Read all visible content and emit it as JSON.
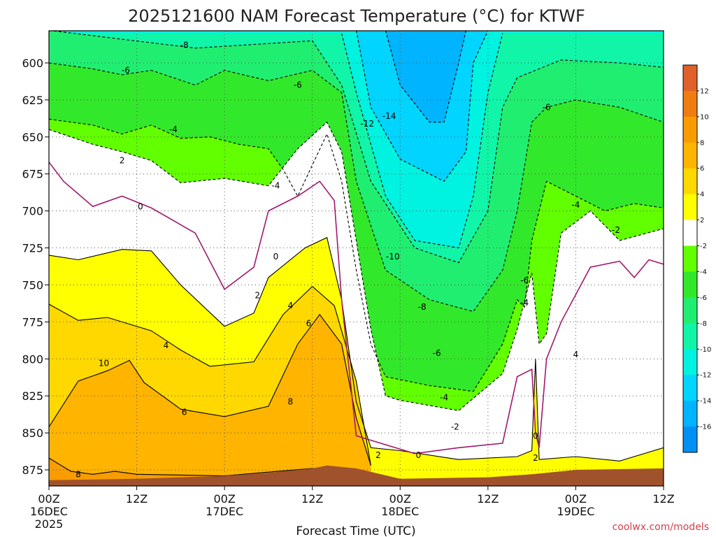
{
  "chart_data": {
    "type": "heatmap",
    "title": "2025121600 NAM Forecast Temperature (°C) for KTWF",
    "xlabel": "Forecast Time (UTC)",
    "ylabel": "",
    "credit": "coolwx.com/models",
    "x_ticks": [
      {
        "hour": 0,
        "line1": "00Z",
        "line2": "16DEC",
        "line3": "2025"
      },
      {
        "hour": 12,
        "line1": "12Z",
        "line2": "",
        "line3": ""
      },
      {
        "hour": 24,
        "line1": "00Z",
        "line2": "17DEC",
        "line3": ""
      },
      {
        "hour": 36,
        "line1": "12Z",
        "line2": "",
        "line3": ""
      },
      {
        "hour": 48,
        "line1": "00Z",
        "line2": "18DEC",
        "line3": ""
      },
      {
        "hour": 60,
        "line1": "12Z",
        "line2": "",
        "line3": ""
      },
      {
        "hour": 72,
        "line1": "00Z",
        "line2": "19DEC",
        "line3": ""
      },
      {
        "hour": 84,
        "line1": "12Z",
        "line2": "",
        "line3": ""
      }
    ],
    "y_ticks": [
      600,
      625,
      650,
      675,
      700,
      725,
      750,
      775,
      800,
      825,
      850,
      875
    ],
    "xlim_hours": [
      0,
      84
    ],
    "ylim_hpa": [
      578,
      885
    ],
    "colorbar": {
      "ticks": [
        12,
        10,
        8,
        6,
        4,
        2,
        -2,
        -4,
        -6,
        -8,
        -10,
        -12,
        -14,
        -16
      ],
      "bands": [
        {
          "lo": 12,
          "hi": 14,
          "color": "#e0602a"
        },
        {
          "lo": 10,
          "hi": 12,
          "color": "#f07d12"
        },
        {
          "lo": 8,
          "hi": 10,
          "color": "#f99c00"
        },
        {
          "lo": 6,
          "hi": 8,
          "color": "#ffb400"
        },
        {
          "lo": 4,
          "hi": 6,
          "color": "#ffd800"
        },
        {
          "lo": 2,
          "hi": 4,
          "color": "#ffff00"
        },
        {
          "lo": -2,
          "hi": 2,
          "color": "#ffffff"
        },
        {
          "lo": -4,
          "hi": -2,
          "color": "#62ff00"
        },
        {
          "lo": -6,
          "hi": -4,
          "color": "#32e82a"
        },
        {
          "lo": -8,
          "hi": -6,
          "color": "#20ee70"
        },
        {
          "lo": -10,
          "hi": -8,
          "color": "#10f5a8"
        },
        {
          "lo": -12,
          "hi": -10,
          "color": "#00f2e0"
        },
        {
          "lo": -14,
          "hi": -12,
          "color": "#00d4ff"
        },
        {
          "lo": -16,
          "hi": -14,
          "color": "#00b4ff"
        },
        {
          "lo": -18,
          "hi": -16,
          "color": "#0090f4"
        }
      ]
    },
    "terrain_color": "#a0522d",
    "terrain_pressure_hpa": [
      {
        "hour": 0,
        "p": 882
      },
      {
        "hour": 12,
        "p": 881
      },
      {
        "hour": 24,
        "p": 879
      },
      {
        "hour": 30,
        "p": 877
      },
      {
        "hour": 36,
        "p": 874
      },
      {
        "hour": 38,
        "p": 872
      },
      {
        "hour": 42,
        "p": 874
      },
      {
        "hour": 48,
        "p": 881
      },
      {
        "hour": 60,
        "p": 880
      },
      {
        "hour": 66,
        "p": 878
      },
      {
        "hour": 72,
        "p": 875
      },
      {
        "hour": 84,
        "p": 874
      }
    ],
    "isotherms": [
      {
        "value": 8,
        "points": [
          [
            0,
            867
          ],
          [
            3,
            876
          ],
          [
            6,
            878
          ],
          [
            9,
            876
          ],
          [
            12,
            878
          ],
          [
            24,
            879
          ],
          [
            36,
            874
          ],
          [
            40,
            876
          ]
        ]
      },
      {
        "value": 6,
        "points": [
          [
            0,
            846
          ],
          [
            4,
            815
          ],
          [
            8,
            808
          ],
          [
            11,
            801
          ],
          [
            13,
            816
          ],
          [
            18,
            834
          ],
          [
            24,
            839
          ],
          [
            30,
            832
          ],
          [
            34,
            790
          ],
          [
            37,
            770
          ],
          [
            40,
            790
          ],
          [
            42,
            840
          ],
          [
            44,
            872
          ]
        ]
      },
      {
        "value": 4,
        "points": [
          [
            0,
            763
          ],
          [
            4,
            774
          ],
          [
            8,
            772
          ],
          [
            14,
            781
          ],
          [
            18,
            794
          ],
          [
            22,
            805
          ],
          [
            28,
            802
          ],
          [
            32,
            770
          ],
          [
            36,
            751
          ],
          [
            39,
            764
          ],
          [
            42,
            815
          ],
          [
            44,
            872
          ]
        ]
      },
      {
        "value": 2,
        "points": [
          [
            0,
            730
          ],
          [
            4,
            733
          ],
          [
            10,
            726
          ],
          [
            14,
            727
          ],
          [
            18,
            750
          ],
          [
            24,
            778
          ],
          [
            28,
            769
          ],
          [
            30,
            745
          ],
          [
            35,
            725
          ],
          [
            38,
            718
          ],
          [
            40,
            760
          ],
          [
            42,
            829
          ],
          [
            44,
            860
          ],
          [
            48,
            862
          ],
          [
            56,
            868
          ],
          [
            64,
            866
          ],
          [
            66,
            862
          ],
          [
            66.5,
            800
          ],
          [
            67,
            868
          ],
          [
            72,
            866
          ],
          [
            78,
            869
          ],
          [
            84,
            860
          ]
        ]
      },
      {
        "value": 0,
        "points": [
          [
            0,
            667
          ],
          [
            2,
            680
          ],
          [
            6,
            697
          ],
          [
            10,
            690
          ],
          [
            14,
            698
          ],
          [
            20,
            715
          ],
          [
            24,
            753
          ],
          [
            28,
            738
          ],
          [
            30,
            700
          ],
          [
            34,
            690
          ],
          [
            37,
            680
          ],
          [
            39,
            693
          ],
          [
            40,
            760
          ],
          [
            42,
            852
          ],
          [
            46,
            858
          ],
          [
            50,
            864
          ],
          [
            56,
            860
          ],
          [
            62,
            857
          ],
          [
            64,
            812
          ],
          [
            66,
            807
          ],
          [
            66.5,
            850
          ],
          [
            67,
            860
          ],
          [
            68,
            800
          ],
          [
            70,
            775
          ],
          [
            74,
            738
          ],
          [
            78,
            734
          ],
          [
            80,
            745
          ],
          [
            82,
            733
          ],
          [
            84,
            736
          ]
        ]
      },
      {
        "value": -2,
        "points": [
          [
            0,
            645
          ],
          [
            6,
            655
          ],
          [
            10,
            660
          ],
          [
            14,
            666
          ],
          [
            18,
            681
          ],
          [
            24,
            678
          ],
          [
            30,
            683
          ],
          [
            34,
            658
          ],
          [
            38,
            640
          ],
          [
            40,
            660
          ],
          [
            42,
            720
          ],
          [
            44,
            780
          ],
          [
            46,
            825
          ],
          [
            48,
            828
          ],
          [
            56,
            835
          ],
          [
            62,
            810
          ],
          [
            64,
            780
          ],
          [
            66,
            742
          ],
          [
            67,
            790
          ],
          [
            68,
            783
          ],
          [
            70,
            715
          ],
          [
            74,
            700
          ],
          [
            78,
            720
          ],
          [
            84,
            712
          ]
        ]
      },
      {
        "value": -4,
        "points": [
          [
            0,
            638
          ],
          [
            6,
            642
          ],
          [
            10,
            648
          ],
          [
            14,
            642
          ],
          [
            18,
            651
          ],
          [
            22,
            650
          ],
          [
            26,
            655
          ],
          [
            30,
            658
          ],
          [
            32,
            672
          ],
          [
            34,
            690
          ],
          [
            38,
            648
          ],
          [
            40,
            680
          ],
          [
            42,
            740
          ],
          [
            44,
            790
          ],
          [
            46,
            812
          ],
          [
            52,
            818
          ],
          [
            58,
            822
          ],
          [
            62,
            790
          ],
          [
            64,
            760
          ],
          [
            65,
            765
          ],
          [
            66,
            720
          ],
          [
            68,
            680
          ],
          [
            72,
            690
          ],
          [
            76,
            700
          ],
          [
            80,
            695
          ],
          [
            84,
            698
          ]
        ]
      },
      {
        "value": -6,
        "points": [
          [
            0,
            600
          ],
          [
            6,
            604
          ],
          [
            10,
            608
          ],
          [
            14,
            605
          ],
          [
            20,
            615
          ],
          [
            24,
            605
          ],
          [
            30,
            612
          ],
          [
            36,
            605
          ],
          [
            40,
            620
          ],
          [
            42,
            680
          ],
          [
            46,
            740
          ],
          [
            52,
            760
          ],
          [
            58,
            768
          ],
          [
            62,
            740
          ],
          [
            64,
            700
          ],
          [
            66,
            640
          ],
          [
            68,
            630
          ],
          [
            72,
            625
          ],
          [
            78,
            630
          ],
          [
            84,
            640
          ]
        ]
      },
      {
        "value": -8,
        "points": [
          [
            0,
            578
          ],
          [
            20,
            590
          ],
          [
            36,
            585
          ],
          [
            40,
            615
          ],
          [
            44,
            680
          ],
          [
            50,
            725
          ],
          [
            56,
            735
          ],
          [
            60,
            700
          ],
          [
            62,
            630
          ],
          [
            64,
            610
          ],
          [
            70,
            598
          ],
          [
            78,
            600
          ],
          [
            84,
            603
          ]
        ]
      },
      {
        "value": -10,
        "points": [
          [
            40,
            580
          ],
          [
            42,
            620
          ],
          [
            46,
            690
          ],
          [
            50,
            720
          ],
          [
            56,
            725
          ],
          [
            58,
            690
          ],
          [
            60,
            620
          ],
          [
            62,
            580
          ]
        ]
      },
      {
        "value": -12,
        "points": [
          [
            42,
            578
          ],
          [
            44,
            630
          ],
          [
            48,
            665
          ],
          [
            54,
            680
          ],
          [
            57,
            660
          ],
          [
            58,
            600
          ],
          [
            60,
            578
          ]
        ]
      },
      {
        "value": -14,
        "points": [
          [
            46,
            578
          ],
          [
            48,
            615
          ],
          [
            52,
            640
          ],
          [
            54,
            640
          ],
          [
            56,
            600
          ],
          [
            57,
            578
          ]
        ]
      }
    ],
    "contour_labels": [
      {
        "text": "-8",
        "hour": 18.5,
        "p": 588
      },
      {
        "text": "-6",
        "hour": 10.5,
        "p": 605
      },
      {
        "text": "-6",
        "hour": 34.0,
        "p": 615
      },
      {
        "text": "-6",
        "hour": 68.0,
        "p": 630
      },
      {
        "text": "-4",
        "hour": 17.0,
        "p": 645
      },
      {
        "text": "-12",
        "hour": 43.5,
        "p": 641
      },
      {
        "text": "-14",
        "hour": 46.5,
        "p": 636
      },
      {
        "text": "2",
        "hour": 10.0,
        "p": 666
      },
      {
        "text": "-4",
        "hour": 31.0,
        "p": 683
      },
      {
        "text": "0",
        "hour": 12.5,
        "p": 697
      },
      {
        "text": "-4",
        "hour": 72.0,
        "p": 696
      },
      {
        "text": "-2",
        "hour": 77.5,
        "p": 713
      },
      {
        "text": "0",
        "hour": 31.0,
        "p": 731
      },
      {
        "text": "-10",
        "hour": 47.0,
        "p": 731
      },
      {
        "text": "-6",
        "hour": 65.0,
        "p": 747
      },
      {
        "text": "2",
        "hour": 28.5,
        "p": 757
      },
      {
        "text": "-8",
        "hour": 51.0,
        "p": 765
      },
      {
        "text": "-4",
        "hour": 65.0,
        "p": 762
      },
      {
        "text": "4",
        "hour": 33.0,
        "p": 764
      },
      {
        "text": "6",
        "hour": 35.5,
        "p": 776
      },
      {
        "text": "4",
        "hour": 16.0,
        "p": 791
      },
      {
        "text": "-6",
        "hour": 53.0,
        "p": 796
      },
      {
        "text": "4",
        "hour": 72.0,
        "p": 797
      },
      {
        "text": "10",
        "hour": 7.5,
        "p": 803
      },
      {
        "text": "-4",
        "hour": 54.0,
        "p": 826
      },
      {
        "text": "8",
        "hour": 33.0,
        "p": 829
      },
      {
        "text": "6",
        "hour": 18.5,
        "p": 836
      },
      {
        "text": "-2",
        "hour": 55.5,
        "p": 846
      },
      {
        "text": "0",
        "hour": 66.5,
        "p": 852
      },
      {
        "text": "2",
        "hour": 45.0,
        "p": 865
      },
      {
        "text": "0",
        "hour": 50.5,
        "p": 865
      },
      {
        "text": "2",
        "hour": 66.5,
        "p": 867
      },
      {
        "text": "8",
        "hour": 4.0,
        "p": 878
      }
    ]
  }
}
